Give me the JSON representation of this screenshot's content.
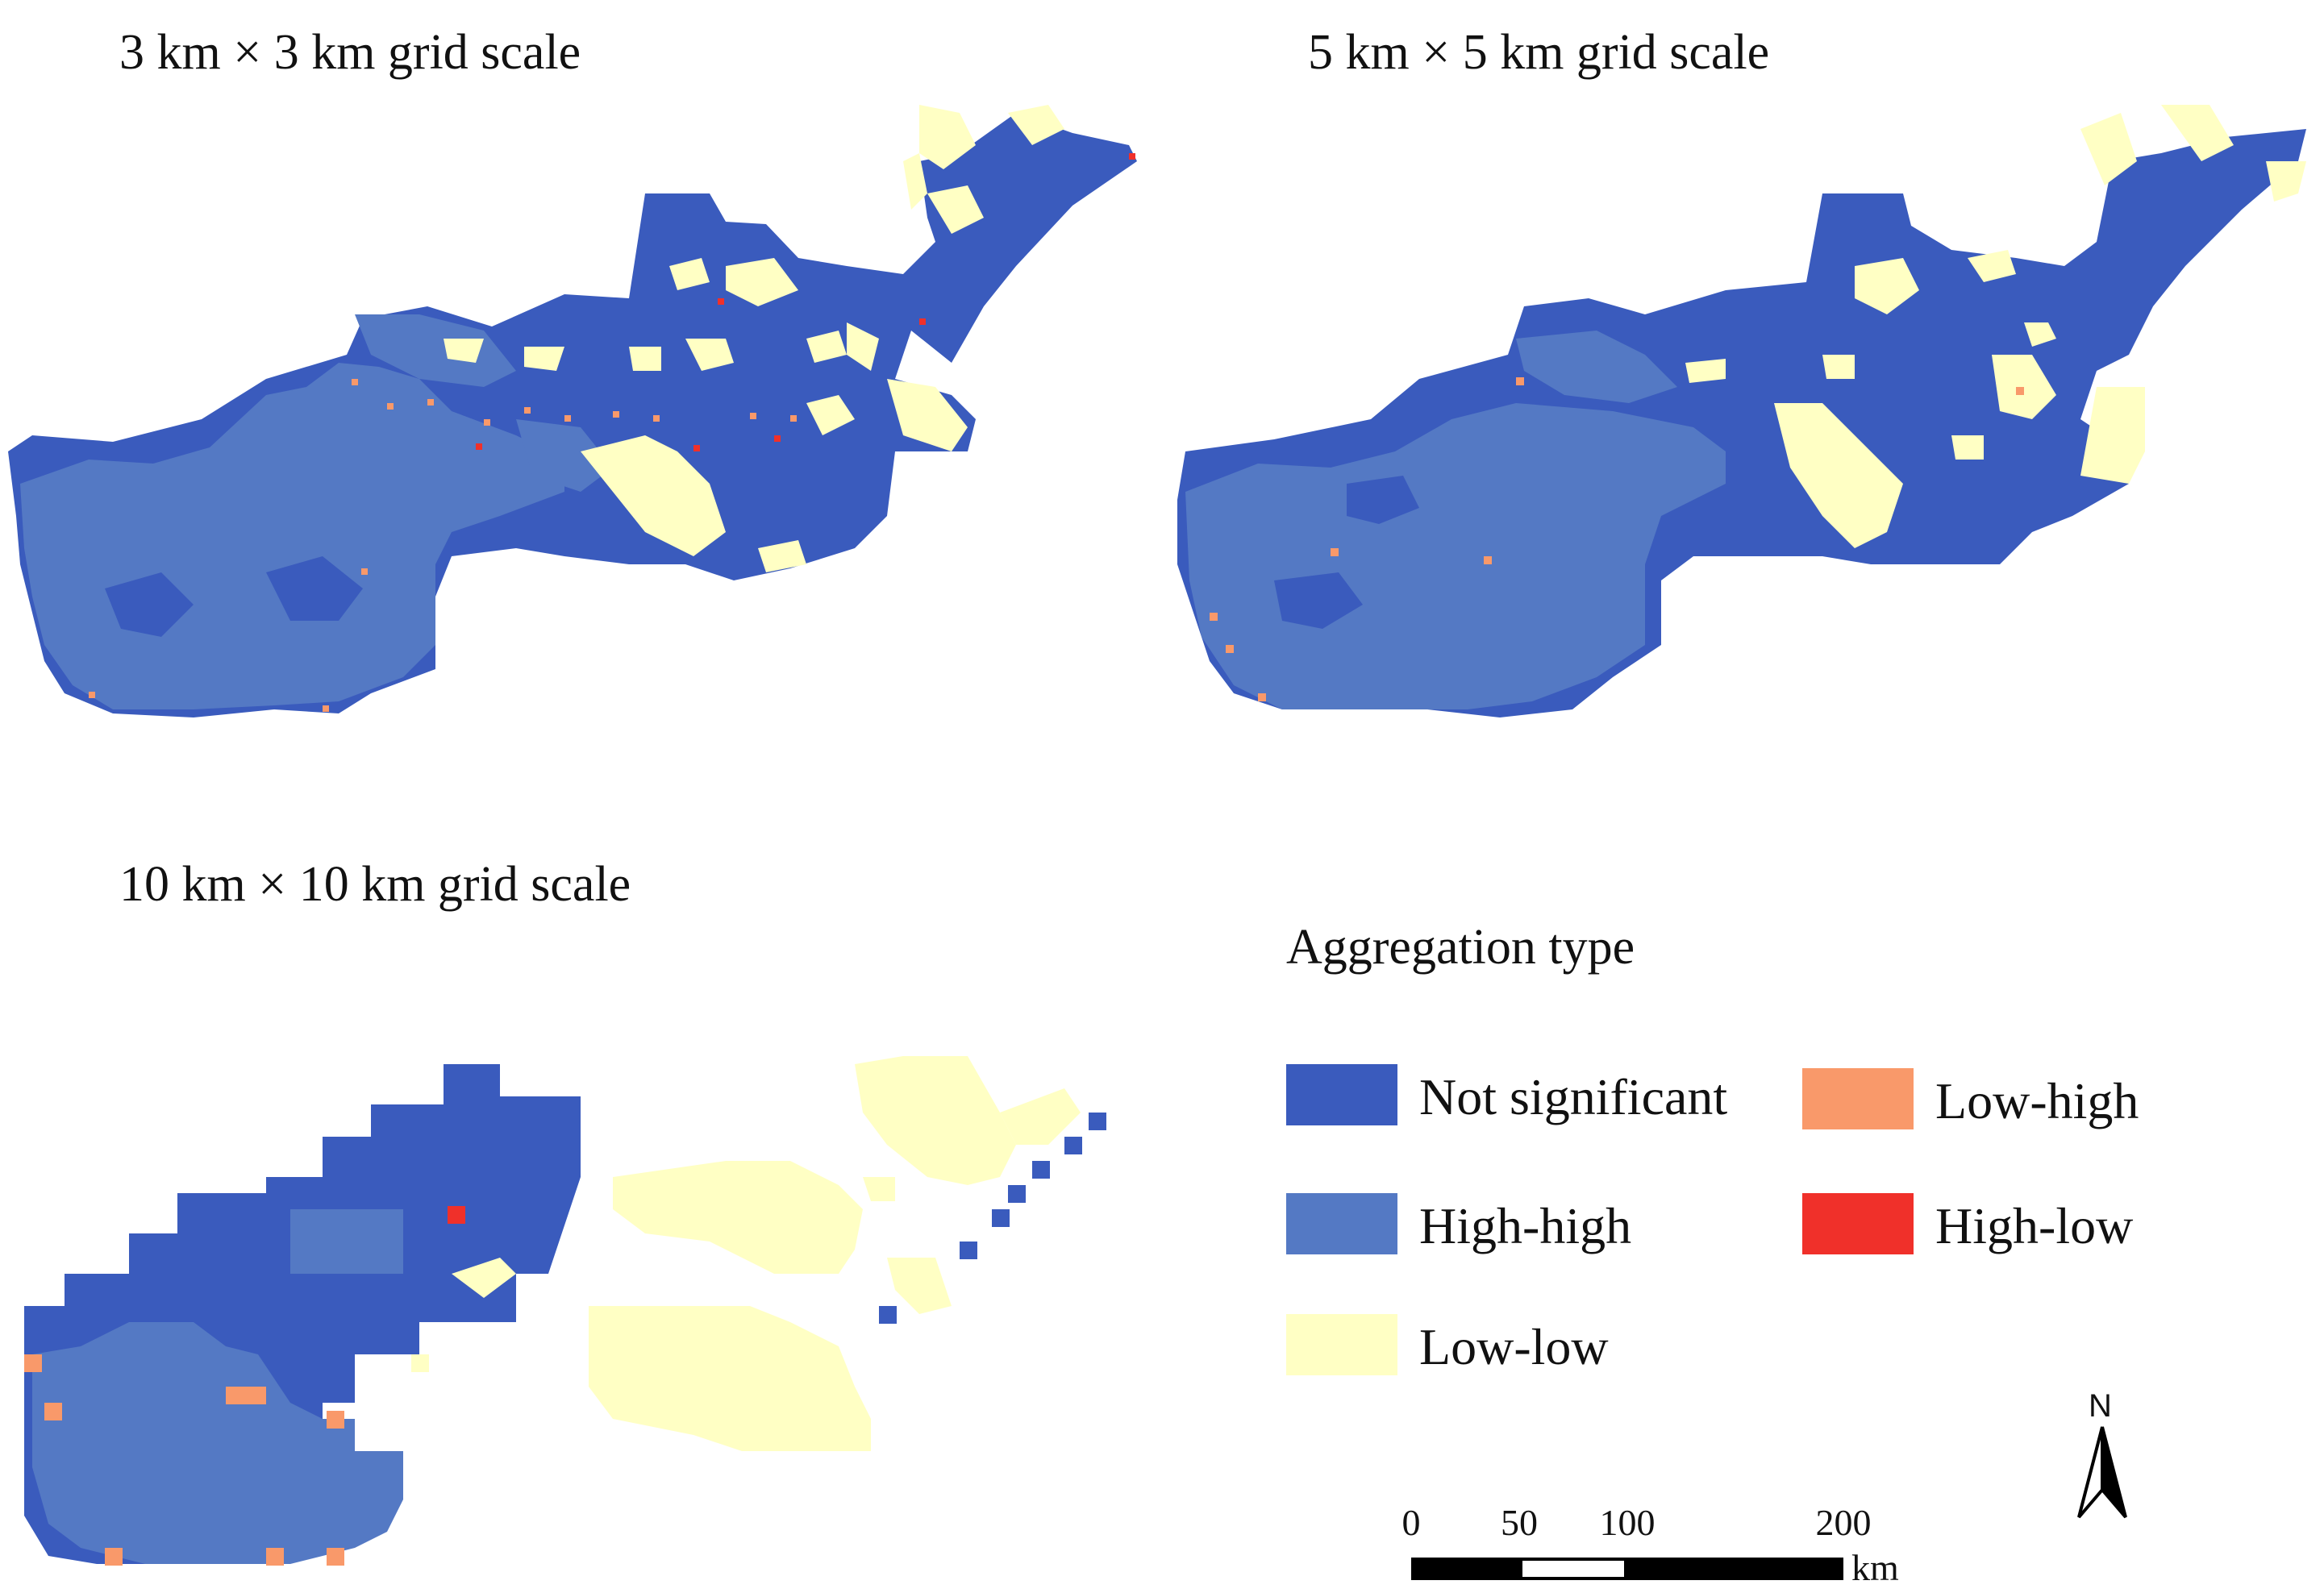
{
  "panels": [
    {
      "title": "3 km × 3 km grid scale"
    },
    {
      "title": "5 km × 5 km grid scale"
    },
    {
      "title": "10 km × 10 km grid scale"
    }
  ],
  "legend": {
    "title": "Aggregation type",
    "items": [
      {
        "label": "Not significant",
        "color": "#3a5bbd"
      },
      {
        "label": "High-high",
        "color": "#5479c4"
      },
      {
        "label": "Low-low",
        "color": "#ffffc4"
      },
      {
        "label": "Low-high",
        "color": "#f9996a"
      },
      {
        "label": "High-low",
        "color": "#f0302a"
      }
    ]
  },
  "north_arrow": {
    "letter": "N"
  },
  "scale_bar": {
    "ticks": [
      "0",
      "50",
      "100",
      "200"
    ],
    "unit": "km"
  }
}
